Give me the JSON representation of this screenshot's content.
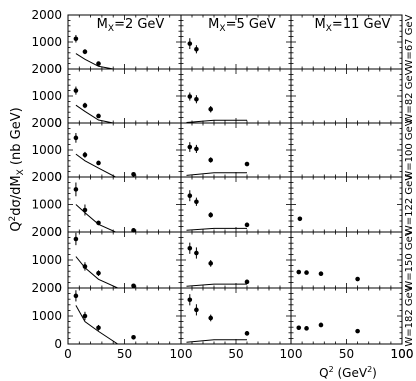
{
  "chart_data": {
    "type": "scatter",
    "layout": "grid",
    "rows": 6,
    "cols": 3,
    "ylabel": "Q²dσ/dMₓ (nb GeV)",
    "ylabel_parts": {
      "prefix": "Q",
      "sup": "2",
      "mid": "dσ/dM",
      "sub": "X",
      "suffix": " (nb GeV)"
    },
    "xlabel_parts": {
      "prefix": "Q",
      "sup": "2",
      "suffix": " (GeV",
      "sup2": "2",
      "end": ")"
    },
    "xlim": [
      0,
      100
    ],
    "ylim": [
      0,
      2000
    ],
    "xticks": [
      "0",
      "50",
      "100"
    ],
    "xticks_last": [
      "0",
      "50",
      "100"
    ],
    "yticks": [
      "0",
      "1000",
      "2000"
    ],
    "column_titles": [
      {
        "prefix": "M",
        "sub": "X",
        "suffix": "=2 GeV"
      },
      {
        "prefix": "M",
        "sub": "X",
        "suffix": "=5 GeV"
      },
      {
        "prefix": "M",
        "sub": "X",
        "suffix": "=11 GeV"
      }
    ],
    "row_labels": [
      "W=67 GeV",
      "W=82 GeV",
      "W=100 GeV",
      "W=122 GeV",
      "W=150 GeV",
      "W=182 GeV"
    ],
    "panels": [
      [
        {
          "points": [
            [
              7,
              1120,
              140
            ],
            [
              15,
              640,
              90
            ],
            [
              27,
              200,
              50
            ]
          ],
          "curve": [
            [
              7,
              570
            ],
            [
              15,
              360
            ],
            [
              27,
              100
            ],
            [
              40,
              0
            ],
            [
              60,
              0
            ]
          ]
        },
        {
          "points": [
            [
              8,
              940,
              200
            ],
            [
              14,
              730,
              150
            ]
          ],
          "curve": []
        },
        {
          "points": [],
          "curve": []
        }
      ],
      [
        {
          "points": [
            [
              7,
              1200,
              150
            ],
            [
              15,
              650,
              100
            ],
            [
              27,
              260,
              60
            ]
          ],
          "curve": [
            [
              7,
              660
            ],
            [
              15,
              430
            ],
            [
              27,
              110
            ],
            [
              40,
              0
            ],
            [
              60,
              0
            ]
          ]
        },
        {
          "points": [
            [
              8,
              980,
              150
            ],
            [
              14,
              880,
              150
            ],
            [
              27,
              510,
              120
            ]
          ],
          "curve": [
            [
              5,
              20
            ],
            [
              30,
              100
            ],
            [
              60,
              100
            ]
          ]
        },
        {
          "points": [],
          "curve": []
        }
      ],
      [
        {
          "points": [
            [
              7,
              1450,
              180
            ],
            [
              15,
              820,
              110
            ],
            [
              27,
              520,
              80
            ],
            [
              58,
              100,
              20
            ]
          ],
          "curve": [
            [
              7,
              850
            ],
            [
              15,
              600
            ],
            [
              27,
              330
            ],
            [
              42,
              0
            ],
            [
              60,
              0
            ]
          ]
        },
        {
          "points": [
            [
              8,
              1110,
              180
            ],
            [
              14,
              1040,
              150
            ],
            [
              27,
              630,
              100
            ],
            [
              60,
              480,
              70
            ]
          ],
          "curve": [
            [
              5,
              60
            ],
            [
              30,
              160
            ],
            [
              60,
              160
            ]
          ]
        },
        {
          "points": [],
          "curve": []
        }
      ],
      [
        {
          "points": [
            [
              7,
              1550,
              250
            ],
            [
              15,
              800,
              200
            ],
            [
              27,
              330,
              80
            ],
            [
              58,
              60,
              20
            ]
          ],
          "curve": [
            [
              7,
              1000
            ],
            [
              15,
              700
            ],
            [
              27,
              280
            ],
            [
              42,
              0
            ],
            [
              60,
              0
            ]
          ]
        },
        {
          "points": [
            [
              8,
              1320,
              200
            ],
            [
              14,
              1100,
              150
            ],
            [
              27,
              620,
              100
            ],
            [
              60,
              260,
              60
            ]
          ],
          "curve": [
            [
              5,
              60
            ],
            [
              30,
              130
            ],
            [
              60,
              130
            ]
          ]
        },
        {
          "points": [
            [
              8,
              480,
              80
            ]
          ],
          "curve": []
        }
      ],
      [
        {
          "points": [
            [
              7,
              1750,
              220
            ],
            [
              15,
              770,
              150
            ],
            [
              27,
              530,
              100
            ],
            [
              58,
              80,
              20
            ]
          ],
          "curve": [
            [
              7,
              1120
            ],
            [
              15,
              720
            ],
            [
              27,
              310
            ],
            [
              44,
              0
            ],
            [
              60,
              0
            ]
          ]
        },
        {
          "points": [
            [
              8,
              1420,
              200
            ],
            [
              14,
              1250,
              200
            ],
            [
              27,
              880,
              120
            ],
            [
              60,
              220,
              60
            ]
          ],
          "curve": [
            [
              5,
              60
            ],
            [
              30,
              140
            ],
            [
              60,
              140
            ]
          ]
        },
        {
          "points": [
            [
              7,
              570,
              70
            ],
            [
              14,
              550,
              60
            ],
            [
              27,
              510,
              60
            ],
            [
              60,
              320,
              50
            ]
          ],
          "curve": []
        }
      ],
      [
        {
          "points": [
            [
              7,
              1720,
              200
            ],
            [
              15,
              1000,
              150
            ],
            [
              27,
              580,
              100
            ],
            [
              58,
              240,
              40
            ]
          ],
          "curve": [
            [
              7,
              1380
            ],
            [
              15,
              800
            ],
            [
              27,
              450
            ],
            [
              44,
              0
            ],
            [
              60,
              0
            ]
          ]
        },
        {
          "points": [
            [
              8,
              1580,
              200
            ],
            [
              14,
              1220,
              200
            ],
            [
              27,
              930,
              120
            ],
            [
              60,
              380,
              80
            ]
          ],
          "curve": [
            [
              5,
              60
            ],
            [
              30,
              150
            ],
            [
              60,
              150
            ]
          ]
        },
        {
          "points": [
            [
              7,
              580,
              80
            ],
            [
              14,
              560,
              70
            ],
            [
              27,
              680,
              80
            ],
            [
              60,
              460,
              60
            ]
          ],
          "curve": []
        }
      ]
    ]
  }
}
